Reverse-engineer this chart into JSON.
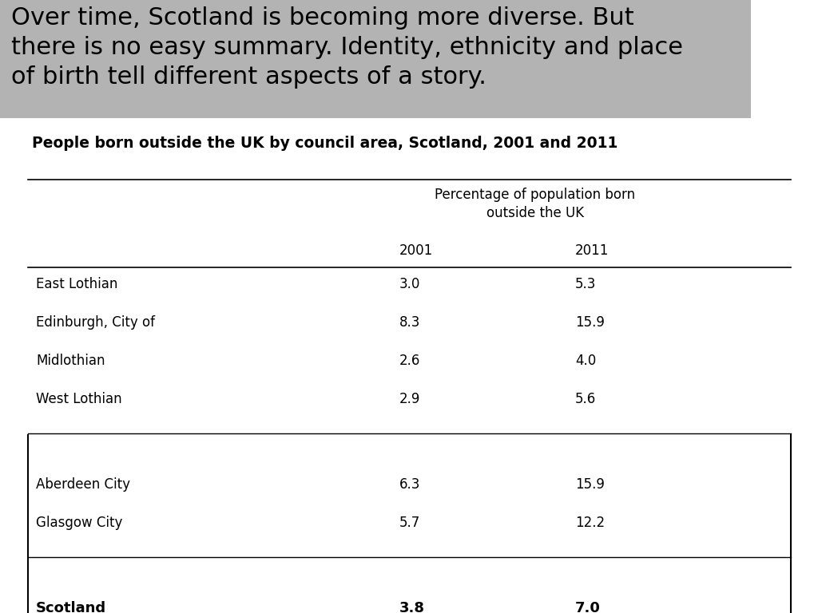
{
  "header_text": "Over time, Scotland is becoming more diverse. But\nthere is no easy summary. Identity, ethnicity and place\nof birth tell different aspects of a story.",
  "header_bg_color": "#b3b3b3",
  "subtitle": "People born outside the UK by council area, Scotland, 2001 and 2011",
  "col_header": "Percentage of population born\noutside the UK",
  "year_2001": "2001",
  "year_2011": "2011",
  "rows_group1": [
    {
      "name": "East Lothian",
      "v2001": "3.0",
      "v2011": "5.3"
    },
    {
      "name": "Edinburgh, City of",
      "v2001": "8.3",
      "v2011": "15.9"
    },
    {
      "name": "Midlothian",
      "v2001": "2.6",
      "v2011": "4.0"
    },
    {
      "name": "West Lothian",
      "v2001": "2.9",
      "v2011": "5.6"
    }
  ],
  "rows_group2": [
    {
      "name": "Aberdeen City",
      "v2001": "6.3",
      "v2011": "15.9"
    },
    {
      "name": "Glasgow City",
      "v2001": "5.7",
      "v2011": "12.2"
    }
  ],
  "row_scotland": {
    "name": "Scotland",
    "v2001": "3.8",
    "v2011": "7.0"
  },
  "bg_color": "#ffffff",
  "text_color": "#000000"
}
